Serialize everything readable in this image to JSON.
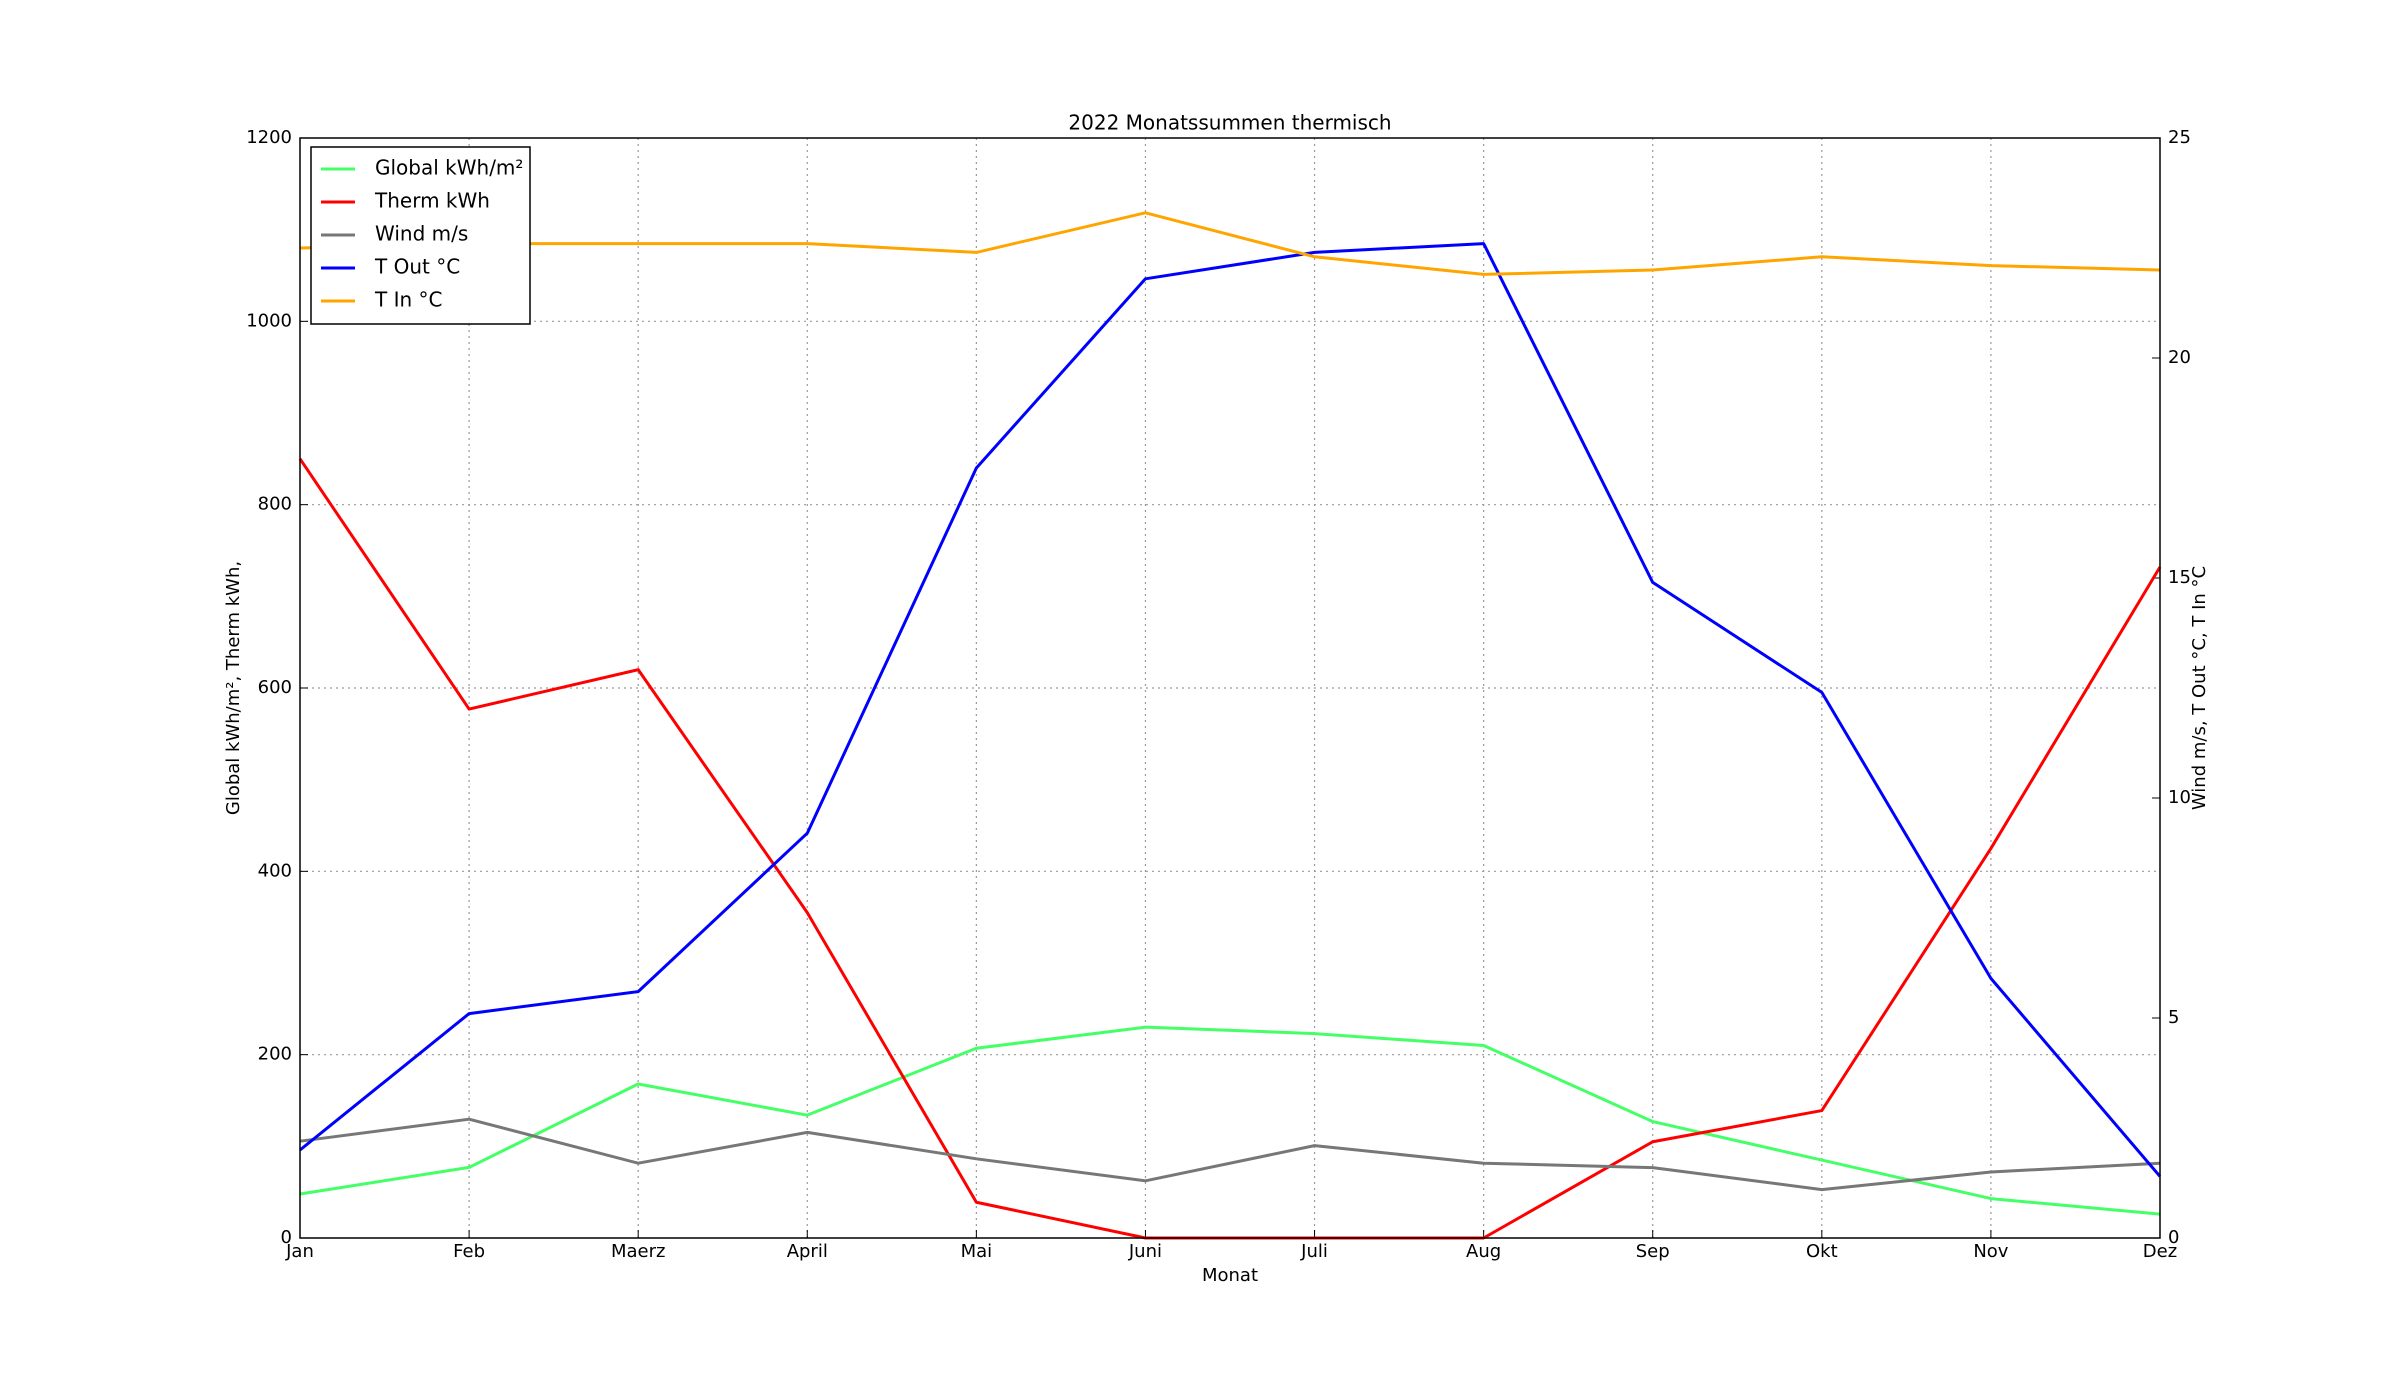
{
  "chart_data": {
    "type": "line",
    "title": "2022 Monatssummen thermisch",
    "xlabel": "Monat",
    "ylabel": "Global kWh/m², Therm kWh,",
    "y2label": "Wind m/s, T Out °C, T In °C",
    "categories": [
      "Jan",
      "Feb",
      "Maerz",
      "April",
      "Mai",
      "Juni",
      "Juli",
      "Aug",
      "Sep",
      "Okt",
      "Nov",
      "Dez"
    ],
    "ylim": [
      0,
      1200
    ],
    "yticks": [
      0,
      200,
      400,
      600,
      800,
      1000,
      1200
    ],
    "y2lim": [
      0,
      25
    ],
    "y2ticks": [
      0,
      5,
      10,
      15,
      20,
      25
    ],
    "grid": true,
    "legend": "upper left",
    "series": [
      {
        "name": "Global kWh/m²",
        "color": "#44ff66",
        "values": [
          48,
          77,
          168,
          134,
          207,
          230,
          223,
          210,
          127,
          85,
          43,
          26
        ]
      },
      {
        "name": "Therm kWh",
        "color": "#ff0000",
        "values": [
          850,
          577,
          620,
          355,
          39,
          0,
          0,
          0,
          105,
          139,
          425,
          732
        ]
      },
      {
        "name": "Wind m/s",
        "color": "#777777",
        "axis": "y2",
        "values": [
          2.2,
          2.7,
          1.7,
          2.4,
          1.8,
          1.3,
          2.1,
          1.7,
          1.6,
          1.1,
          1.5,
          1.7
        ]
      },
      {
        "name": "T Out °C",
        "color": "#0000ff",
        "axis": "y2",
        "values": [
          2.0,
          5.1,
          5.6,
          9.2,
          17.5,
          21.8,
          22.4,
          22.6,
          14.9,
          12.4,
          5.9,
          1.4
        ]
      },
      {
        "name": "T In °C",
        "color": "#ffa500",
        "axis": "y2",
        "values": [
          22.5,
          22.6,
          22.6,
          22.6,
          22.4,
          23.3,
          22.3,
          21.9,
          22.0,
          22.3,
          22.1,
          22.0
        ]
      }
    ]
  }
}
